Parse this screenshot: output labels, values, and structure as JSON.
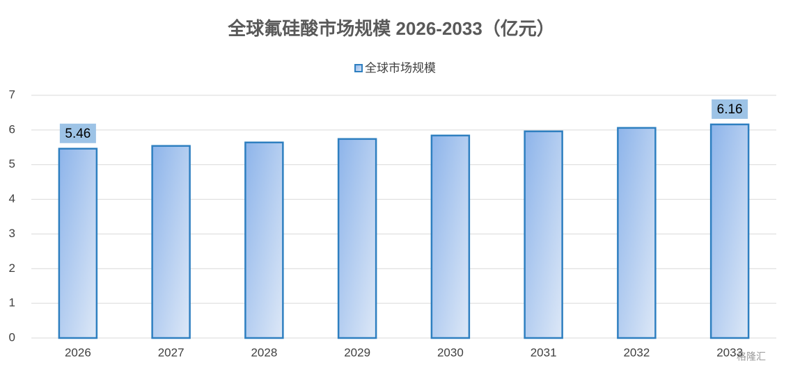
{
  "chart_data": {
    "type": "bar",
    "title": "全球氟硅酸市场规模 2026-2033（亿元）",
    "categories": [
      "2026",
      "2027",
      "2028",
      "2029",
      "2030",
      "2031",
      "2032",
      "2033"
    ],
    "series": [
      {
        "name": "全球市场规模",
        "color": "#2e7fc0",
        "values": [
          5.46,
          5.54,
          5.64,
          5.74,
          5.84,
          5.96,
          6.06,
          6.16
        ]
      }
    ],
    "ylim": [
      0,
      7
    ],
    "yticks": [
      0,
      1,
      2,
      3,
      4,
      5,
      6,
      7
    ],
    "grid": true,
    "legend": "top",
    "watermark": "格隆汇"
  }
}
